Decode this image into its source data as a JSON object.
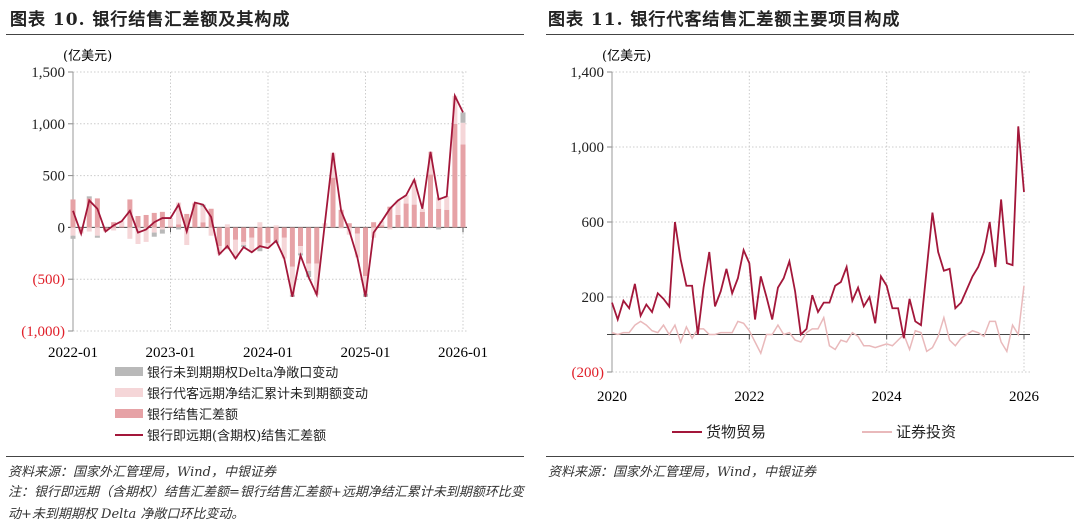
{
  "left": {
    "title": "图表 10. 银行结售汇差额及其构成",
    "source": "资料来源：国家外汇管理局，Wind，中银证券",
    "note": "注：银行即远期（含期权）结售汇差额=银行结售汇差额+远期净结汇累计未到期额环比变动+未到期期权 Delta 净敞口环比变动。"
  },
  "right": {
    "title": "图表 11. 银行代客结售汇差额主要项目构成",
    "source": "资料来源：国家外汇管理局，Wind，中银证券"
  },
  "chart_data": [
    {
      "type": "bar+line",
      "ylabel": "(亿美元)",
      "ylim": [
        -1000,
        1500
      ],
      "yticks": [
        "(1,000)",
        "(500)",
        "0",
        "500",
        "1,000",
        "1,500"
      ],
      "ytick_values": [
        -1000,
        -500,
        0,
        500,
        1000,
        1500
      ],
      "negative_tick_color": "#e0202a",
      "xticks": [
        "2022-01",
        "2023-01",
        "2024-01",
        "2025-01",
        "2026-01"
      ],
      "x_start": "2022-01",
      "grid": "dotted",
      "legend_position": "bottom",
      "series": [
        {
          "name": "银行未到期期权Delta净敞口变动",
          "kind": "bar",
          "color": "#b9b9b9",
          "values": [
            -30,
            0,
            20,
            -20,
            0,
            0,
            0,
            0,
            0,
            0,
            -40,
            -40,
            0,
            -20,
            0,
            0,
            20,
            0,
            0,
            0,
            0,
            -20,
            0,
            -30,
            0,
            -20,
            0,
            -20,
            -20,
            -60,
            0,
            0,
            0,
            0,
            0,
            0,
            -30,
            0,
            0,
            0,
            0,
            0,
            0,
            0,
            0,
            -20,
            0,
            0,
            100
          ]
        },
        {
          "name": "银行代客远期净结汇累计未到期额变动",
          "kind": "bar",
          "color": "#f5d6d8",
          "values": [
            -80,
            -40,
            -40,
            -80,
            -10,
            -30,
            50,
            -110,
            -160,
            -140,
            -50,
            -20,
            80,
            210,
            -170,
            10,
            150,
            -80,
            -80,
            30,
            -180,
            -30,
            -140,
            50,
            -50,
            20,
            -200,
            -270,
            -70,
            -70,
            -300,
            40,
            240,
            -10,
            -70,
            -230,
            -170,
            -100,
            40,
            -20,
            140,
            80,
            240,
            30,
            220,
            110,
            130,
            270,
            210
          ]
        },
        {
          "name": "银行结售汇差额",
          "kind": "bar",
          "color": "#e6a2a6",
          "values": [
            270,
            -20,
            280,
            280,
            -30,
            50,
            10,
            270,
            110,
            120,
            140,
            150,
            10,
            30,
            130,
            230,
            50,
            180,
            -180,
            -210,
            -120,
            -140,
            -100,
            -200,
            -150,
            -130,
            -100,
            -380,
            -180,
            -350,
            -350,
            0,
            480,
            170,
            40,
            -60,
            -470,
            50,
            20,
            200,
            120,
            230,
            220,
            150,
            510,
            180,
            170,
            1000,
            800
          ]
        },
        {
          "name": "银行即远期(含期权)结售汇差额",
          "kind": "line",
          "color": "#a3173a",
          "values": [
            160,
            -60,
            260,
            180,
            -40,
            20,
            60,
            160,
            -50,
            -20,
            50,
            90,
            90,
            220,
            -40,
            240,
            220,
            100,
            -260,
            -180,
            -300,
            -190,
            -240,
            -180,
            -200,
            -130,
            -300,
            -670,
            -270,
            -480,
            -650,
            40,
            720,
            160,
            -30,
            -290,
            -670,
            -50,
            60,
            180,
            260,
            310,
            460,
            180,
            730,
            270,
            300,
            1270,
            1110
          ]
        }
      ]
    },
    {
      "type": "line",
      "ylabel": "(亿美元)",
      "ylim": [
        -200,
        1400
      ],
      "yticks": [
        "(200)",
        "200",
        "600",
        "1,000",
        "1,400"
      ],
      "ytick_values": [
        -200,
        200,
        600,
        1000,
        1400
      ],
      "negative_tick_color": "#e0202a",
      "xticks": [
        "2020",
        "2022",
        "2024",
        "2026"
      ],
      "x_start": "2020-01",
      "grid": "dotted",
      "legend_position": "bottom",
      "series": [
        {
          "name": "货物贸易",
          "color": "#a3173a",
          "values": [
            170,
            80,
            180,
            140,
            270,
            100,
            160,
            120,
            220,
            190,
            150,
            600,
            400,
            260,
            260,
            0,
            250,
            440,
            150,
            230,
            350,
            220,
            300,
            450,
            380,
            80,
            310,
            200,
            80,
            250,
            300,
            390,
            230,
            0,
            30,
            210,
            120,
            170,
            170,
            260,
            280,
            360,
            180,
            250,
            150,
            200,
            60,
            310,
            260,
            140,
            140,
            -20,
            190,
            70,
            50,
            350,
            650,
            440,
            340,
            350,
            140,
            170,
            240,
            310,
            360,
            440,
            600,
            360,
            720,
            380,
            370,
            1110,
            760
          ]
        },
        {
          "name": "证券投资",
          "color": "#e9b9bb",
          "values": [
            10,
            0,
            10,
            10,
            50,
            70,
            50,
            20,
            10,
            50,
            0,
            50,
            -40,
            40,
            -20,
            30,
            30,
            0,
            0,
            10,
            10,
            10,
            70,
            60,
            20,
            -40,
            -100,
            0,
            0,
            50,
            0,
            10,
            -30,
            -40,
            10,
            30,
            30,
            90,
            -60,
            -80,
            -30,
            -40,
            10,
            -10,
            -60,
            -60,
            -70,
            -60,
            -50,
            -60,
            -30,
            0,
            -80,
            20,
            10,
            -90,
            -70,
            -10,
            90,
            -30,
            -60,
            -20,
            0,
            20,
            10,
            -10,
            70,
            70,
            -40,
            -90,
            50,
            0,
            260
          ]
        }
      ]
    }
  ]
}
